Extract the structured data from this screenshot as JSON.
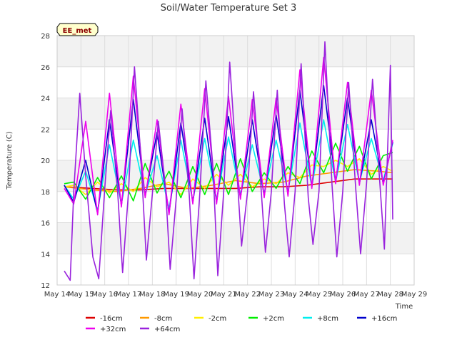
{
  "chart_data": {
    "type": "line",
    "title": "Soil/Water Temperature Set 3",
    "xlabel": "Time",
    "ylabel": "Temperature (C)",
    "badge": "EE_met",
    "xlim": [
      14,
      29
    ],
    "ylim": [
      12,
      28
    ],
    "x_ticks": [
      14,
      15,
      16,
      17,
      18,
      19,
      20,
      21,
      22,
      23,
      24,
      25,
      26,
      27,
      28,
      29
    ],
    "x_tick_labels": [
      "May 14",
      "May 15",
      "May 16",
      "May 17",
      "May 18",
      "May 19",
      "May 20",
      "May 21",
      "May 22",
      "May 23",
      "May 24",
      "May 25",
      "May 26",
      "May 27",
      "May 28",
      "May 29"
    ],
    "y_ticks": [
      12,
      14,
      16,
      18,
      20,
      22,
      24,
      26,
      28
    ],
    "grid": true,
    "background_bands": true,
    "legend_position": "bottom",
    "series": [
      {
        "name": "-16cm",
        "color": "#dd0000",
        "x": [
          14.3,
          15.5,
          16.5,
          17.5,
          18.5,
          19.5,
          20.5,
          21.5,
          22.5,
          23.5,
          24.5,
          25.5,
          26.5,
          27.5,
          28.1
        ],
        "y": [
          18.3,
          18.2,
          18.1,
          18.1,
          18.2,
          18.2,
          18.2,
          18.2,
          18.3,
          18.3,
          18.4,
          18.6,
          18.8,
          18.8,
          18.8
        ]
      },
      {
        "name": "-8cm",
        "color": "#ff9900",
        "x": [
          14.3,
          15.5,
          16.5,
          17.5,
          18.5,
          19.5,
          20.5,
          21.5,
          22.5,
          23.5,
          24.5,
          25.5,
          26.5,
          27.5,
          28.1
        ],
        "y": [
          18.3,
          18.1,
          18.0,
          18.2,
          18.5,
          18.2,
          18.4,
          18.7,
          18.5,
          18.6,
          19.0,
          19.2,
          19.4,
          19.3,
          19.2
        ]
      },
      {
        "name": "-2cm",
        "color": "#ffee00",
        "x": [
          14.3,
          14.7,
          15.2,
          15.7,
          16.2,
          16.7,
          17.2,
          17.7,
          18.2,
          18.7,
          19.2,
          19.7,
          20.2,
          20.7,
          21.2,
          21.7,
          22.2,
          22.7,
          23.2,
          23.7,
          24.2,
          24.7,
          25.2,
          25.7,
          26.2,
          26.7,
          27.2,
          27.7,
          28.1
        ],
        "y": [
          18.3,
          18.4,
          17.8,
          18.6,
          17.9,
          18.5,
          18.0,
          18.9,
          18.3,
          18.6,
          17.8,
          18.8,
          18.2,
          19.1,
          18.4,
          19.1,
          18.3,
          18.8,
          18.5,
          19.2,
          18.9,
          19.7,
          19.6,
          20.0,
          19.6,
          20.1,
          19.1,
          19.6,
          19.3
        ]
      },
      {
        "name": "+2cm",
        "color": "#00ee00",
        "x": [
          14.3,
          14.7,
          15.2,
          15.7,
          16.2,
          16.7,
          17.2,
          17.7,
          18.2,
          18.7,
          19.2,
          19.7,
          20.2,
          20.7,
          21.2,
          21.7,
          22.2,
          22.7,
          23.2,
          23.7,
          24.2,
          24.7,
          25.2,
          25.7,
          26.2,
          26.7,
          27.2,
          27.7,
          28.1
        ],
        "y": [
          18.5,
          18.6,
          17.5,
          18.9,
          17.6,
          19.0,
          17.4,
          19.8,
          17.9,
          19.3,
          17.6,
          19.6,
          17.8,
          19.8,
          17.8,
          20.1,
          18.0,
          19.2,
          18.2,
          19.6,
          18.5,
          20.6,
          19.2,
          21.1,
          19.3,
          20.9,
          18.8,
          20.3,
          20.5
        ]
      },
      {
        "name": "+8cm",
        "color": "#00eeee",
        "x": [
          14.3,
          14.7,
          15.2,
          15.7,
          16.2,
          16.7,
          17.2,
          17.7,
          18.2,
          18.7,
          19.2,
          19.7,
          20.2,
          20.7,
          21.2,
          21.7,
          22.2,
          22.7,
          23.2,
          23.7,
          24.2,
          24.7,
          25.2,
          25.7,
          26.2,
          26.7,
          27.2,
          27.7,
          28.1
        ],
        "y": [
          18.4,
          17.5,
          19.3,
          16.8,
          21.0,
          17.2,
          21.3,
          17.8,
          20.3,
          16.9,
          21.3,
          17.4,
          21.4,
          17.5,
          21.5,
          17.8,
          21.0,
          17.9,
          21.3,
          18.0,
          22.4,
          18.3,
          22.6,
          18.6,
          22.3,
          18.6,
          21.4,
          18.7,
          21.1
        ]
      },
      {
        "name": "+16cm",
        "color": "#0000cc",
        "x": [
          14.3,
          14.7,
          15.2,
          15.7,
          16.2,
          16.7,
          17.2,
          17.7,
          18.2,
          18.7,
          19.2,
          19.7,
          20.2,
          20.7,
          21.2,
          21.7,
          22.2,
          22.7,
          23.2,
          23.7,
          24.2,
          24.7,
          25.2,
          25.7,
          26.2,
          26.7,
          27.2,
          27.7,
          28.1
        ],
        "y": [
          18.4,
          17.3,
          20.0,
          16.6,
          22.6,
          17.1,
          23.9,
          17.7,
          21.8,
          16.6,
          22.4,
          17.3,
          22.7,
          17.3,
          22.8,
          17.6,
          22.6,
          17.7,
          22.9,
          17.8,
          24.5,
          18.3,
          24.8,
          18.6,
          24.0,
          18.5,
          22.6,
          18.5,
          21.2
        ]
      },
      {
        "name": "+32cm",
        "color": "#ee00ee",
        "x": [
          14.3,
          14.7,
          15.2,
          15.7,
          16.2,
          16.7,
          17.2,
          17.7,
          18.2,
          18.7,
          19.2,
          19.7,
          20.2,
          20.7,
          21.2,
          21.7,
          22.2,
          22.7,
          23.2,
          23.7,
          24.2,
          24.7,
          25.2,
          25.7,
          26.2,
          26.7,
          27.2,
          27.7,
          28.1
        ],
        "y": [
          18.2,
          17.2,
          22.5,
          16.5,
          24.3,
          17.0,
          25.4,
          17.6,
          22.6,
          16.5,
          23.6,
          17.2,
          24.6,
          17.2,
          24.1,
          17.5,
          23.9,
          17.6,
          24.0,
          17.7,
          25.8,
          18.2,
          26.6,
          18.5,
          25.0,
          18.4,
          24.5,
          18.4,
          21.3
        ]
      },
      {
        "name": "+64cm",
        "color": "#9922dd",
        "x": [
          14.3,
          14.55,
          14.7,
          14.95,
          15.2,
          15.5,
          15.75,
          16.0,
          16.25,
          16.55,
          16.75,
          17.0,
          17.25,
          17.5,
          17.75,
          18.0,
          18.25,
          18.55,
          18.75,
          19.0,
          19.25,
          19.55,
          19.75,
          20.0,
          20.25,
          20.55,
          20.75,
          21.0,
          21.25,
          21.55,
          21.75,
          22.0,
          22.25,
          22.55,
          22.75,
          23.0,
          23.25,
          23.55,
          23.75,
          24.0,
          24.25,
          24.55,
          24.75,
          25.0,
          25.25,
          25.55,
          25.75,
          26.0,
          26.25,
          26.55,
          26.75,
          27.0,
          27.25,
          27.55,
          27.75,
          28.0,
          28.1
        ],
        "y": [
          12.9,
          12.3,
          18.0,
          24.3,
          19.0,
          13.8,
          12.4,
          18.2,
          23.2,
          17.8,
          12.8,
          18.0,
          26.0,
          20.6,
          13.6,
          17.8,
          22.5,
          18.3,
          13.0,
          17.5,
          23.3,
          17.8,
          12.4,
          18.0,
          25.1,
          19.5,
          12.6,
          18.0,
          26.3,
          19.3,
          14.5,
          18.0,
          24.4,
          18.6,
          14.1,
          18.0,
          24.5,
          17.2,
          13.8,
          18.0,
          26.2,
          17.6,
          14.6,
          18.0,
          27.6,
          18.4,
          13.8,
          18.0,
          25.0,
          18.1,
          14.0,
          18.5,
          25.2,
          18.7,
          14.3,
          26.1,
          16.2
        ]
      }
    ]
  }
}
